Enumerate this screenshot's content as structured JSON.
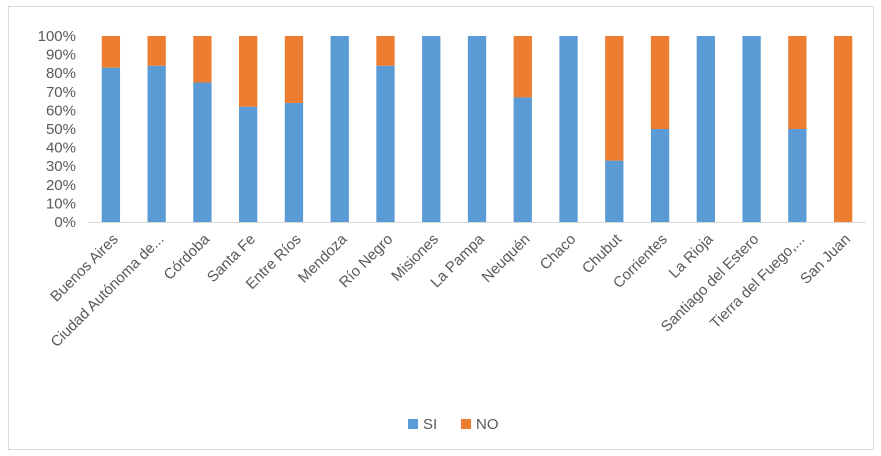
{
  "chart_data": {
    "type": "bar",
    "stacked": true,
    "percent_stacked": true,
    "categories": [
      "Buenos Aires",
      "Ciudad Autónoma de...",
      "Córdoba",
      "Santa Fe",
      "Entre Ríos",
      "Mendoza",
      "Río Negro",
      "Misiones",
      "La Pampa",
      "Neuquén",
      "Chaco",
      "Chubut",
      "Corrientes",
      "La Rioja",
      "Santiago del Estero",
      "Tierra del Fuego,...",
      "San Juan"
    ],
    "series": [
      {
        "name": "SI",
        "color": "#5b9bd5",
        "values": [
          83,
          84,
          75,
          62,
          64,
          100,
          84,
          100,
          100,
          67,
          100,
          33,
          50,
          100,
          100,
          50,
          0
        ]
      },
      {
        "name": "NO",
        "color": "#ed7d31",
        "values": [
          17,
          16,
          25,
          38,
          36,
          0,
          16,
          0,
          0,
          33,
          0,
          67,
          50,
          0,
          0,
          50,
          100
        ]
      }
    ],
    "y_ticks": [
      "0%",
      "10%",
      "20%",
      "30%",
      "40%",
      "50%",
      "60%",
      "70%",
      "80%",
      "90%",
      "100%"
    ],
    "ylim": [
      0,
      100
    ],
    "grid": false,
    "legend_position": "bottom"
  }
}
